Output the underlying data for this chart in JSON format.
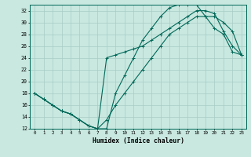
{
  "xlabel": "Humidex (Indice chaleur)",
  "bg_color": "#c8e8e0",
  "grid_color": "#a8ccc4",
  "line_color": "#006858",
  "xlim": [
    -0.5,
    23.5
  ],
  "ylim": [
    12,
    33
  ],
  "xticks": [
    0,
    1,
    2,
    3,
    4,
    5,
    6,
    7,
    8,
    9,
    10,
    11,
    12,
    13,
    14,
    15,
    16,
    17,
    18,
    19,
    20,
    21,
    22,
    23
  ],
  "yticks": [
    12,
    14,
    16,
    18,
    20,
    22,
    24,
    26,
    28,
    30,
    32
  ],
  "curve1_x": [
    0,
    1,
    2,
    3,
    4,
    5,
    6,
    7,
    8,
    9,
    10,
    11,
    12,
    13,
    14,
    15,
    16,
    17,
    18,
    19,
    20,
    21,
    22,
    23
  ],
  "curve1_y": [
    18,
    17,
    16,
    15,
    14.5,
    13.5,
    12.5,
    12,
    12,
    18,
    21,
    24,
    27,
    29,
    31,
    32.5,
    33,
    33,
    33,
    31,
    29,
    28,
    25,
    24.5
  ],
  "curve2_x": [
    0,
    1,
    2,
    3,
    4,
    5,
    6,
    7,
    8,
    9,
    10,
    11,
    12,
    13,
    14,
    15,
    16,
    17,
    18,
    19,
    20,
    21,
    22,
    23
  ],
  "curve2_y": [
    18,
    17,
    16,
    15,
    14.5,
    13.5,
    12.5,
    12,
    13.5,
    16,
    18,
    20,
    22,
    24,
    26,
    28,
    29,
    30,
    31,
    31,
    31,
    30,
    28.5,
    24.5
  ],
  "curve3_x": [
    0,
    1,
    2,
    3,
    4,
    5,
    6,
    7,
    8,
    9,
    10,
    11,
    12,
    13,
    14,
    15,
    16,
    17,
    18,
    19,
    20,
    21,
    22,
    23
  ],
  "curve3_y": [
    18,
    17,
    16,
    15,
    14.5,
    13.5,
    12.5,
    12,
    24,
    24.5,
    25,
    25.5,
    26,
    27,
    28,
    29,
    30,
    31,
    32,
    32,
    31.5,
    28.5,
    26,
    24.5
  ]
}
